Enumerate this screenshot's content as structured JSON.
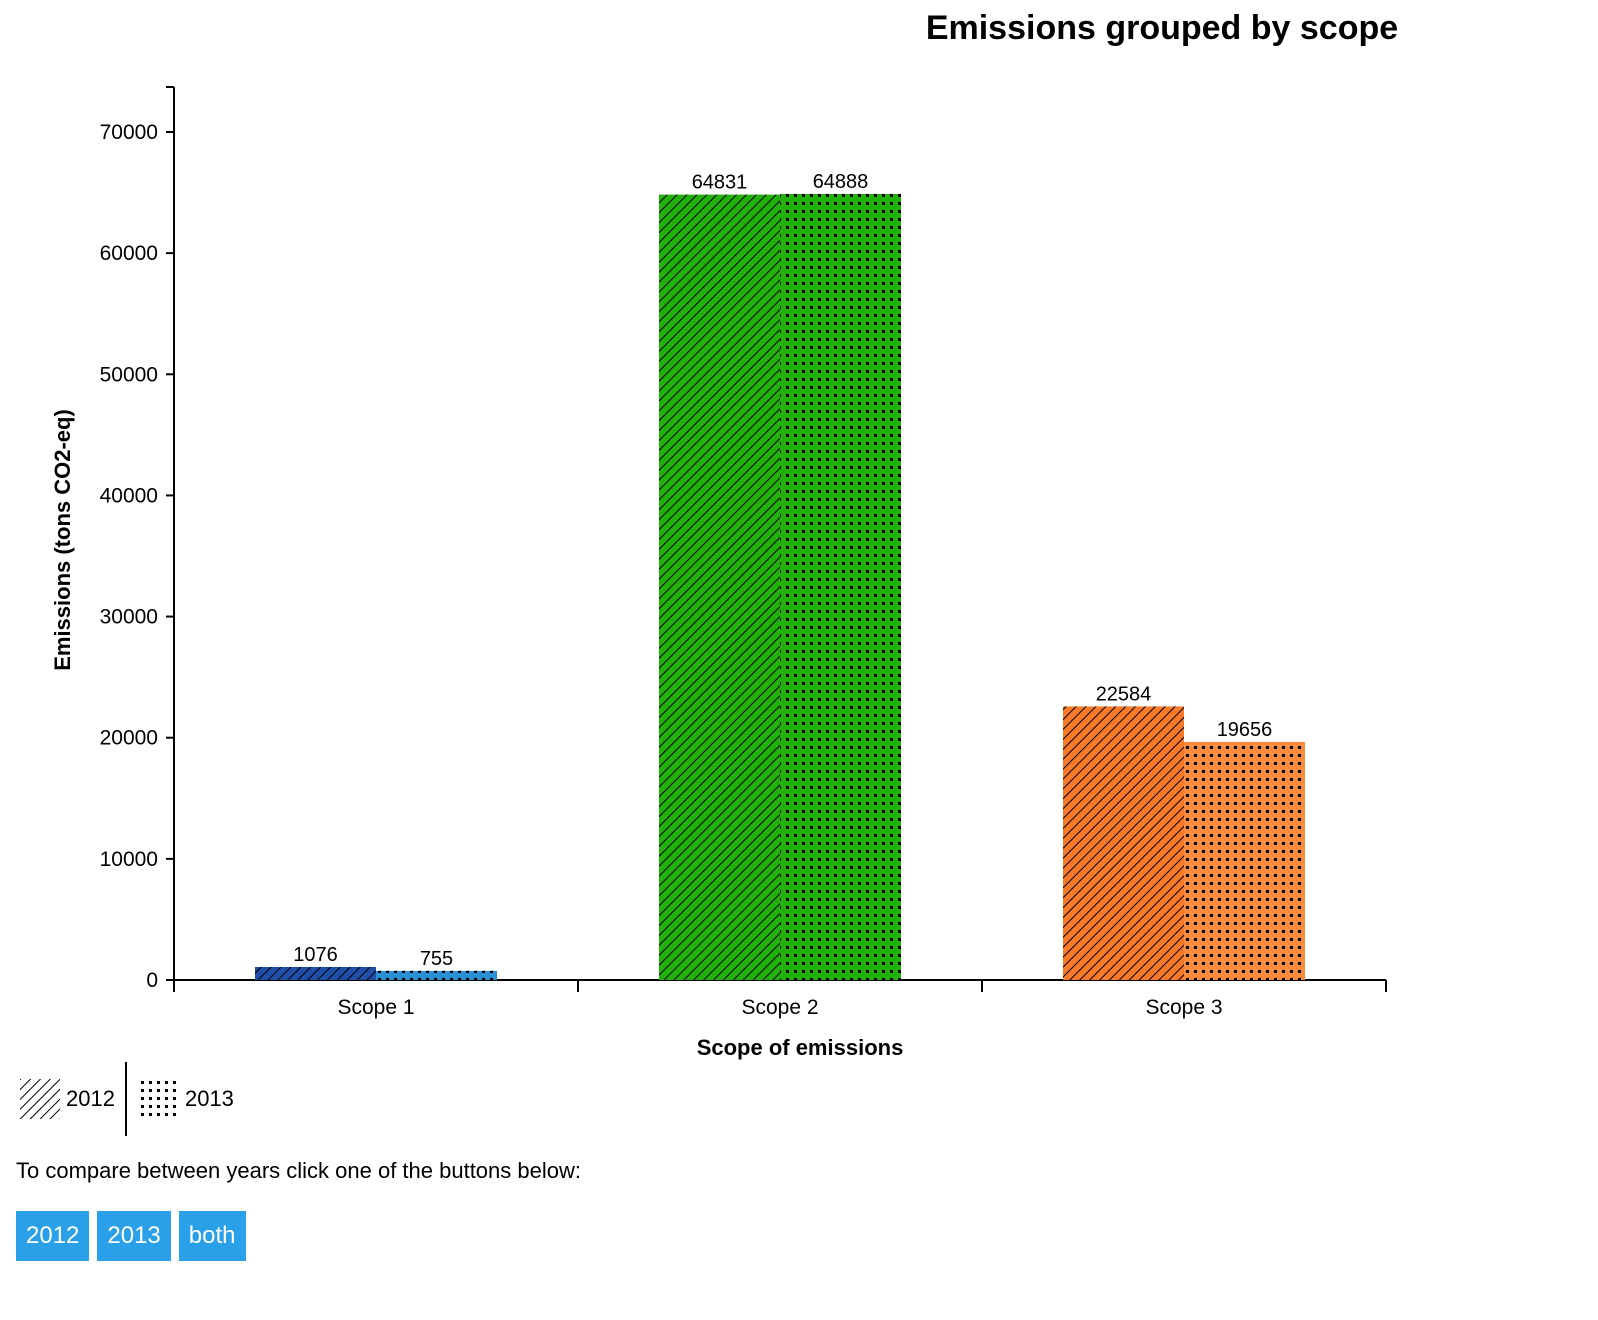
{
  "chart_data": {
    "type": "bar",
    "title": "Emissions grouped by scope",
    "xlabel": "Scope of emissions",
    "ylabel": "Emissions (tons CO2-eq)",
    "ylim": [
      0,
      70000
    ],
    "yticks": [
      "0",
      "10000",
      "20000",
      "30000",
      "40000",
      "50000",
      "60000",
      "70000"
    ],
    "categories": [
      "Scope 1",
      "Scope 2",
      "Scope 3"
    ],
    "category_colors": [
      "#1f4fa8",
      "#22b00a",
      "#f97a28"
    ],
    "category_colors_light": [
      "#2a8fd4",
      "#22b00a",
      "#fb8a3c"
    ],
    "series": [
      {
        "name": "2012",
        "pattern": "diagonal-hatch",
        "values": [
          1076,
          64831,
          22584
        ]
      },
      {
        "name": "2013",
        "pattern": "dots",
        "values": [
          755,
          64888,
          19656
        ]
      }
    ],
    "grid": false,
    "legend_position": "bottom-left"
  },
  "legend": {
    "items": [
      {
        "label": "2012",
        "icon": "diagonal-hatch-icon"
      },
      {
        "label": "2013",
        "icon": "dot-grid-icon"
      }
    ]
  },
  "instructions": "To compare between years click one of the buttons below:",
  "buttons": {
    "b2012": "2012",
    "b2013": "2013",
    "both": "both",
    "color": "#2aa0e8"
  }
}
